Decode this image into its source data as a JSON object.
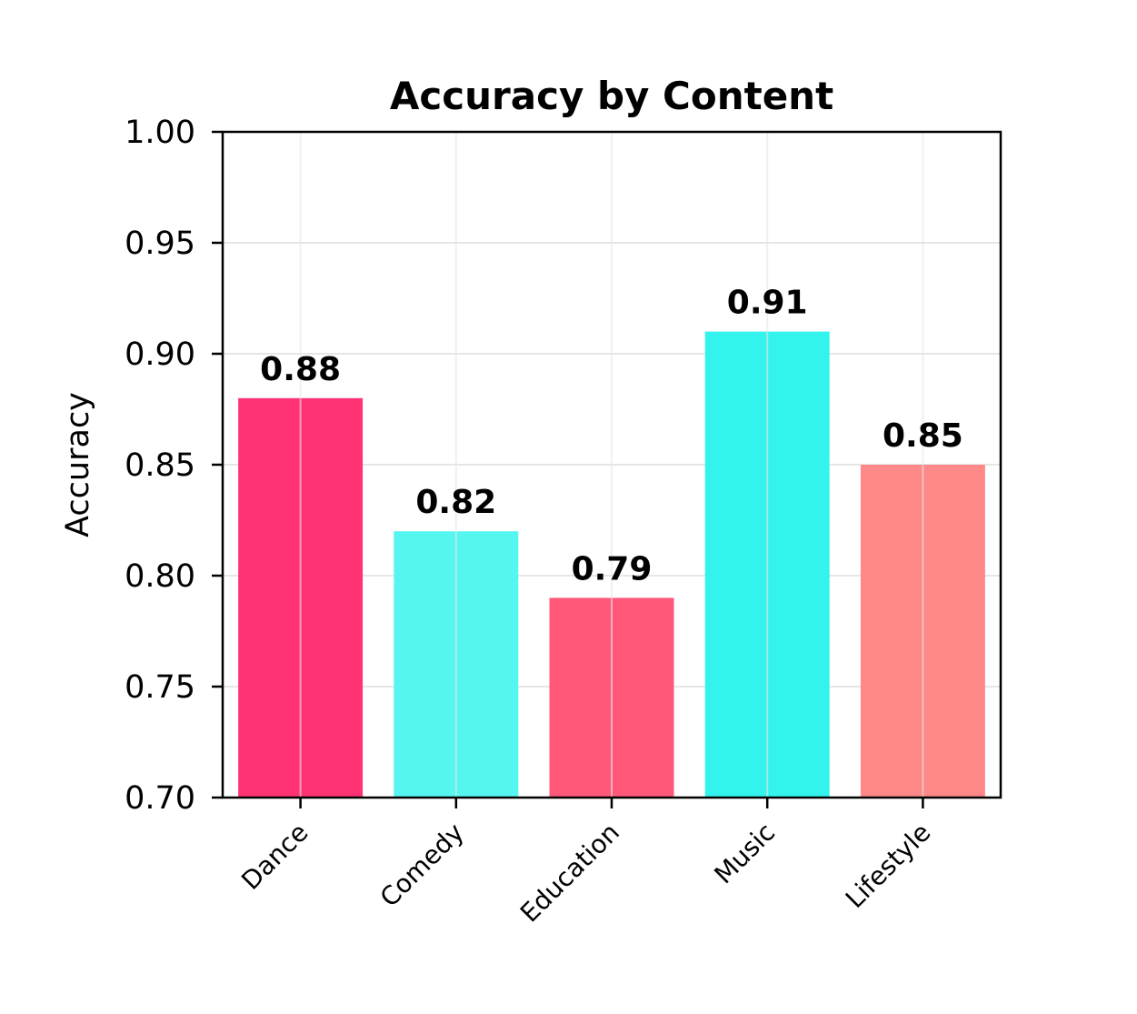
{
  "chart_data": {
    "type": "bar",
    "title": "Accuracy by Content",
    "xlabel": "",
    "ylabel": "Accuracy",
    "categories": [
      "Dance",
      "Comedy",
      "Education",
      "Music",
      "Lifestyle"
    ],
    "values": [
      0.88,
      0.82,
      0.79,
      0.91,
      0.85
    ],
    "value_labels": [
      "0.88",
      "0.82",
      "0.79",
      "0.91",
      "0.85"
    ],
    "colors": [
      "#ff3374",
      "#55f6ef",
      "#ff5878",
      "#33f3ed",
      "#ff8888"
    ],
    "ylim": [
      0.7,
      1.0
    ],
    "yticks": [
      0.7,
      0.75,
      0.8,
      0.85,
      0.9,
      0.95,
      1.0
    ],
    "ytick_labels": [
      "0.70",
      "0.75",
      "0.80",
      "0.85",
      "0.90",
      "0.95",
      "1.00"
    ],
    "grid": true,
    "legend": "none"
  }
}
